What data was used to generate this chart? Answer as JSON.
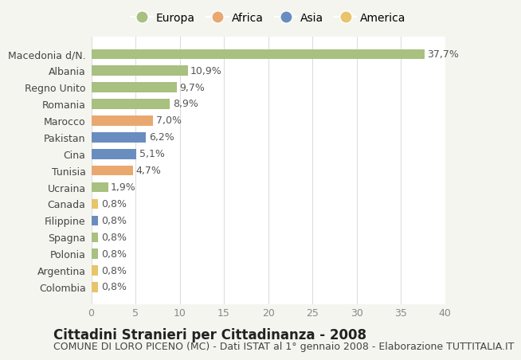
{
  "categories": [
    "Colombia",
    "Argentina",
    "Polonia",
    "Spagna",
    "Filippine",
    "Canada",
    "Ucraina",
    "Tunisia",
    "Cina",
    "Pakistan",
    "Marocco",
    "Romania",
    "Regno Unito",
    "Albania",
    "Macedonia d/N."
  ],
  "values": [
    0.8,
    0.8,
    0.8,
    0.8,
    0.8,
    0.8,
    1.9,
    4.7,
    5.1,
    6.2,
    7.0,
    8.9,
    9.7,
    10.9,
    37.7
  ],
  "labels": [
    "0,8%",
    "0,8%",
    "0,8%",
    "0,8%",
    "0,8%",
    "0,8%",
    "1,9%",
    "4,7%",
    "5,1%",
    "6,2%",
    "7,0%",
    "8,9%",
    "9,7%",
    "10,9%",
    "37,7%"
  ],
  "colors": [
    "#e8c46a",
    "#e8c46a",
    "#a8c080",
    "#a8c080",
    "#6a8dc0",
    "#e8c46a",
    "#a8c080",
    "#e8a870",
    "#6a8dc0",
    "#6a8dc0",
    "#e8a870",
    "#a8c080",
    "#a8c080",
    "#a8c080",
    "#a8c080"
  ],
  "legend_labels": [
    "Europa",
    "Africa",
    "Asia",
    "America"
  ],
  "legend_colors": [
    "#a8c080",
    "#e8a870",
    "#6a8dc0",
    "#e8c46a"
  ],
  "title": "Cittadini Stranieri per Cittadinanza - 2008",
  "subtitle": "COMUNE DI LORO PICENO (MC) - Dati ISTAT al 1° gennaio 2008 - Elaborazione TUTTITALIA.IT",
  "xlim": [
    0,
    40
  ],
  "xticks": [
    0,
    5,
    10,
    15,
    20,
    25,
    30,
    35,
    40
  ],
  "bg_color": "#f5f5f0",
  "bar_bg_color": "#ffffff",
  "grid_color": "#dddddd",
  "title_fontsize": 12,
  "subtitle_fontsize": 9,
  "tick_fontsize": 9,
  "label_fontsize": 9,
  "legend_fontsize": 10
}
